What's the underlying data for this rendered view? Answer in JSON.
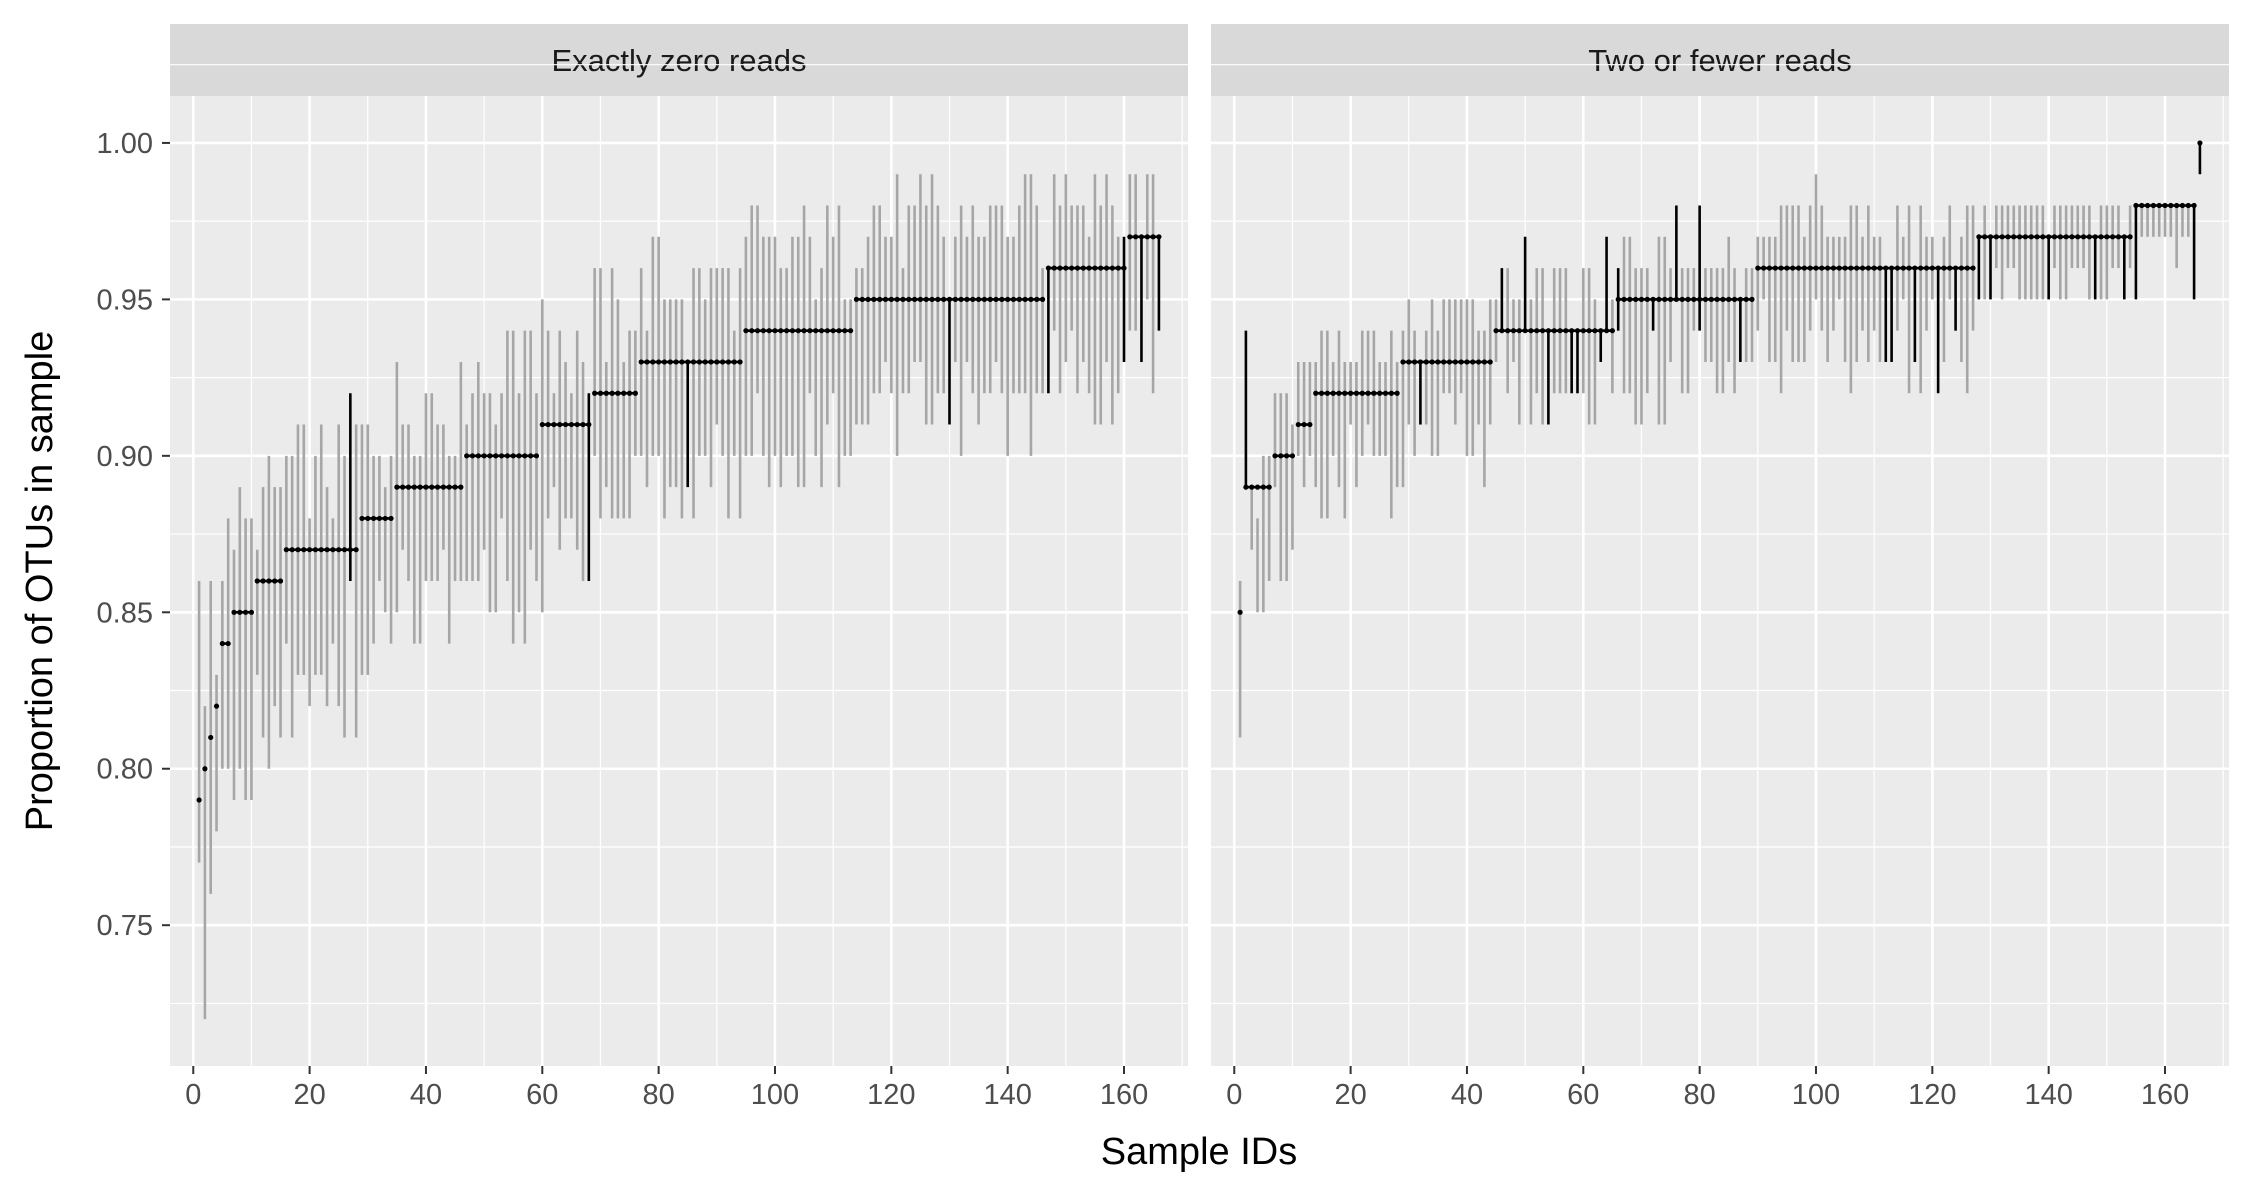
{
  "chart_data": {
    "type": "point-range",
    "xlabel": "Sample IDs",
    "ylabel": "Proportion of OTUs in sample",
    "xlim": [
      -4,
      171
    ],
    "ylim": [
      0.705,
      1.015
    ],
    "x_ticks": [
      0,
      20,
      40,
      60,
      80,
      100,
      120,
      140,
      160
    ],
    "y_ticks": [
      0.75,
      0.8,
      0.85,
      0.9,
      0.95,
      1.0
    ],
    "y_tick_labels": [
      "0.75",
      "0.80",
      "0.85",
      "0.90",
      "0.95",
      "1.00"
    ],
    "colors": {
      "panel_background": "#ebebeb",
      "strip_background": "#d9d9d9",
      "gridline": "#ffffff",
      "grey_interval": "#a6a6a6",
      "black_interval": "#000000",
      "point": "#000000"
    },
    "panels": [
      {
        "title": "Exactly zero reads",
        "median_steps": [
          [
            1,
            0.79
          ],
          [
            2,
            0.8
          ],
          [
            3,
            0.81
          ],
          [
            4,
            0.82
          ],
          [
            5,
            0.84
          ],
          [
            7,
            0.85
          ],
          [
            11,
            0.86
          ],
          [
            16,
            0.87
          ],
          [
            29,
            0.88
          ],
          [
            35,
            0.89
          ],
          [
            47,
            0.9
          ],
          [
            60,
            0.91
          ],
          [
            69,
            0.92
          ],
          [
            77,
            0.93
          ],
          [
            95,
            0.94
          ],
          [
            114,
            0.95
          ],
          [
            147,
            0.96
          ],
          [
            161,
            0.97
          ]
        ],
        "n_samples": 166,
        "black_intervals": [
          [
            27,
            0.86,
            0.92
          ],
          [
            68,
            0.86,
            0.92
          ],
          [
            85,
            0.89,
            0.93
          ],
          [
            130,
            0.91,
            0.95
          ],
          [
            147,
            0.92,
            0.96
          ],
          [
            160,
            0.93,
            0.97
          ],
          [
            163,
            0.93,
            0.97
          ],
          [
            166,
            0.94,
            0.97
          ]
        ],
        "grey_extremes": [
          [
            1,
            0.77,
            0.86
          ],
          [
            2,
            0.72,
            0.82
          ],
          [
            3,
            0.76,
            0.86
          ],
          [
            28,
            0.81,
            0.91
          ],
          [
            55,
            0.84,
            0.94
          ],
          [
            57,
            0.84,
            0.94
          ],
          [
            60,
            0.85,
            0.95
          ],
          [
            101,
            0.89,
            0.96
          ],
          [
            157,
            0.93,
            0.99
          ]
        ]
      },
      {
        "title": "Two or fewer reads",
        "median_steps": [
          [
            1,
            0.85
          ],
          [
            2,
            0.89
          ],
          [
            7,
            0.9
          ],
          [
            11,
            0.91
          ],
          [
            14,
            0.92
          ],
          [
            29,
            0.93
          ],
          [
            45,
            0.94
          ],
          [
            66,
            0.95
          ],
          [
            90,
            0.96
          ],
          [
            128,
            0.97
          ],
          [
            155,
            0.98
          ],
          [
            166,
            1.0
          ]
        ],
        "n_samples": 166,
        "black_intervals": [
          [
            2,
            0.89,
            0.94
          ],
          [
            32,
            0.91,
            0.93
          ],
          [
            46,
            0.94,
            0.96
          ],
          [
            50,
            0.94,
            0.97
          ],
          [
            54,
            0.91,
            0.94
          ],
          [
            58,
            0.92,
            0.94
          ],
          [
            59,
            0.92,
            0.94
          ],
          [
            63,
            0.93,
            0.94
          ],
          [
            64,
            0.94,
            0.97
          ],
          [
            66,
            0.94,
            0.96
          ],
          [
            72,
            0.94,
            0.95
          ],
          [
            76,
            0.95,
            0.98
          ],
          [
            80,
            0.94,
            0.98
          ],
          [
            87,
            0.93,
            0.95
          ],
          [
            112,
            0.93,
            0.96
          ],
          [
            113,
            0.93,
            0.96
          ],
          [
            117,
            0.93,
            0.96
          ],
          [
            121,
            0.92,
            0.96
          ],
          [
            124,
            0.94,
            0.96
          ],
          [
            128,
            0.95,
            0.97
          ],
          [
            130,
            0.95,
            0.97
          ],
          [
            140,
            0.95,
            0.97
          ],
          [
            148,
            0.95,
            0.97
          ],
          [
            153,
            0.95,
            0.97
          ],
          [
            155,
            0.95,
            0.98
          ],
          [
            165,
            0.95,
            0.98
          ],
          [
            166,
            0.99,
            1.0
          ]
        ],
        "grey_extremes": [
          [
            1,
            0.81,
            0.86
          ],
          [
            3,
            0.87,
            0.89
          ],
          [
            4,
            0.85,
            0.88
          ],
          [
            100,
            0.95,
            0.99
          ]
        ]
      }
    ]
  }
}
